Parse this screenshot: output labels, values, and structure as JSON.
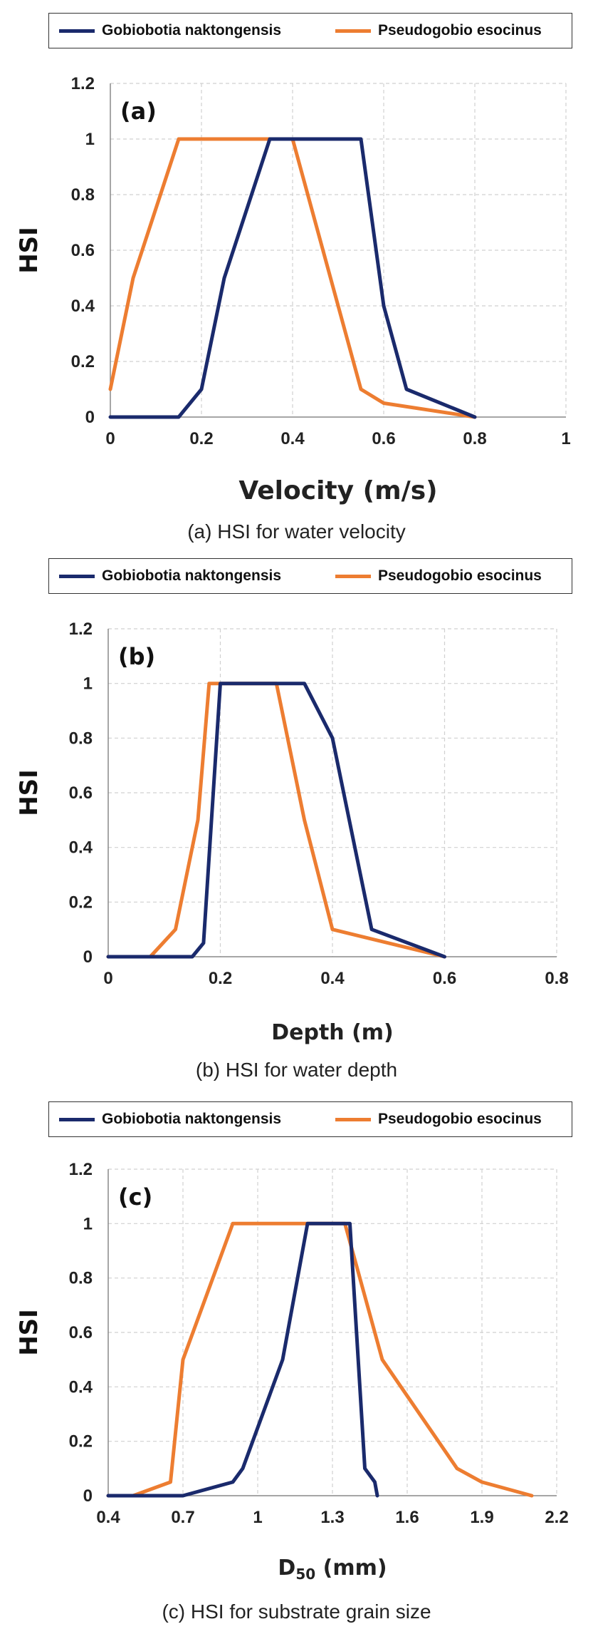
{
  "colors": {
    "series_1": "#1a2a6c",
    "series_2": "#ed7d31",
    "grid": "#d0d0d0",
    "axis": "#888888"
  },
  "chart_data": [
    {
      "type": "line",
      "panel_label": "(a)",
      "caption": "(a) HSI for water velocity",
      "xlabel": "Velocity (m/s)",
      "ylabel": "HSI",
      "xlim": [
        0,
        1
      ],
      "ylim": [
        0,
        1.2
      ],
      "x_ticks": [
        "0",
        "0.2",
        "0.4",
        "0.6",
        "0.8",
        "1"
      ],
      "y_ticks": [
        "0",
        "0.2",
        "0.4",
        "0.6",
        "0.8",
        "1",
        "1.2"
      ],
      "grid": true,
      "legend_position": "top",
      "series": [
        {
          "name": "Gobiobotia naktongensis",
          "points": [
            [
              0,
              0
            ],
            [
              0.15,
              0
            ],
            [
              0.2,
              0.1
            ],
            [
              0.25,
              0.5
            ],
            [
              0.35,
              1
            ],
            [
              0.55,
              1
            ],
            [
              0.6,
              0.4
            ],
            [
              0.65,
              0.1
            ],
            [
              0.8,
              0
            ]
          ]
        },
        {
          "name": "Pseudogobio esocinus",
          "points": [
            [
              0,
              0.1
            ],
            [
              0.05,
              0.5
            ],
            [
              0.15,
              1
            ],
            [
              0.4,
              1
            ],
            [
              0.55,
              0.1
            ],
            [
              0.6,
              0.05
            ],
            [
              0.8,
              0
            ]
          ]
        }
      ]
    },
    {
      "type": "line",
      "panel_label": "(b)",
      "caption": "(b) HSI for water depth",
      "xlabel": "Depth (m)",
      "ylabel": "HSI",
      "xlim": [
        0,
        0.8
      ],
      "ylim": [
        0,
        1.2
      ],
      "x_ticks": [
        "0",
        "0.2",
        "0.4",
        "0.6",
        "0.8"
      ],
      "y_ticks": [
        "0",
        "0.2",
        "0.4",
        "0.6",
        "0.8",
        "1",
        "1.2"
      ],
      "grid": true,
      "legend_position": "top",
      "series": [
        {
          "name": "Gobiobotia naktongensis",
          "points": [
            [
              0,
              0
            ],
            [
              0.15,
              0
            ],
            [
              0.17,
              0.05
            ],
            [
              0.2,
              1
            ],
            [
              0.35,
              1
            ],
            [
              0.4,
              0.8
            ],
            [
              0.47,
              0.1
            ],
            [
              0.6,
              0
            ]
          ]
        },
        {
          "name": "Pseudogobio esocinus",
          "points": [
            [
              0,
              0
            ],
            [
              0.075,
              0
            ],
            [
              0.12,
              0.1
            ],
            [
              0.16,
              0.5
            ],
            [
              0.18,
              1
            ],
            [
              0.3,
              1
            ],
            [
              0.35,
              0.5
            ],
            [
              0.4,
              0.1
            ],
            [
              0.6,
              0
            ]
          ]
        }
      ]
    },
    {
      "type": "line",
      "panel_label": "(c)",
      "caption": "(c) HSI for substrate grain size",
      "xlabel": "D",
      "xlabel_sub": "50",
      "xlabel_unit": " (mm)",
      "ylabel": "HSI",
      "xlim": [
        0.4,
        2.2
      ],
      "ylim": [
        0,
        1.2
      ],
      "x_ticks": [
        "0.4",
        "0.7",
        "1",
        "1.3",
        "1.6",
        "1.9",
        "2.2"
      ],
      "y_ticks": [
        "0",
        "0.2",
        "0.4",
        "0.6",
        "0.8",
        "1",
        "1.2"
      ],
      "grid": true,
      "legend_position": "top",
      "series": [
        {
          "name": "Gobiobotia naktongensis",
          "points": [
            [
              0.4,
              0
            ],
            [
              0.7,
              0
            ],
            [
              0.9,
              0.05
            ],
            [
              0.94,
              0.1
            ],
            [
              1.1,
              0.5
            ],
            [
              1.2,
              1
            ],
            [
              1.37,
              1
            ],
            [
              1.43,
              0.1
            ],
            [
              1.47,
              0.05
            ],
            [
              1.48,
              0
            ]
          ]
        },
        {
          "name": "Pseudogobio esocinus",
          "points": [
            [
              0.4,
              0
            ],
            [
              0.5,
              0
            ],
            [
              0.65,
              0.05
            ],
            [
              0.7,
              0.5
            ],
            [
              0.9,
              1
            ],
            [
              1.35,
              1
            ],
            [
              1.5,
              0.5
            ],
            [
              1.8,
              0.1
            ],
            [
              1.9,
              0.05
            ],
            [
              2.1,
              0
            ]
          ]
        }
      ]
    }
  ]
}
